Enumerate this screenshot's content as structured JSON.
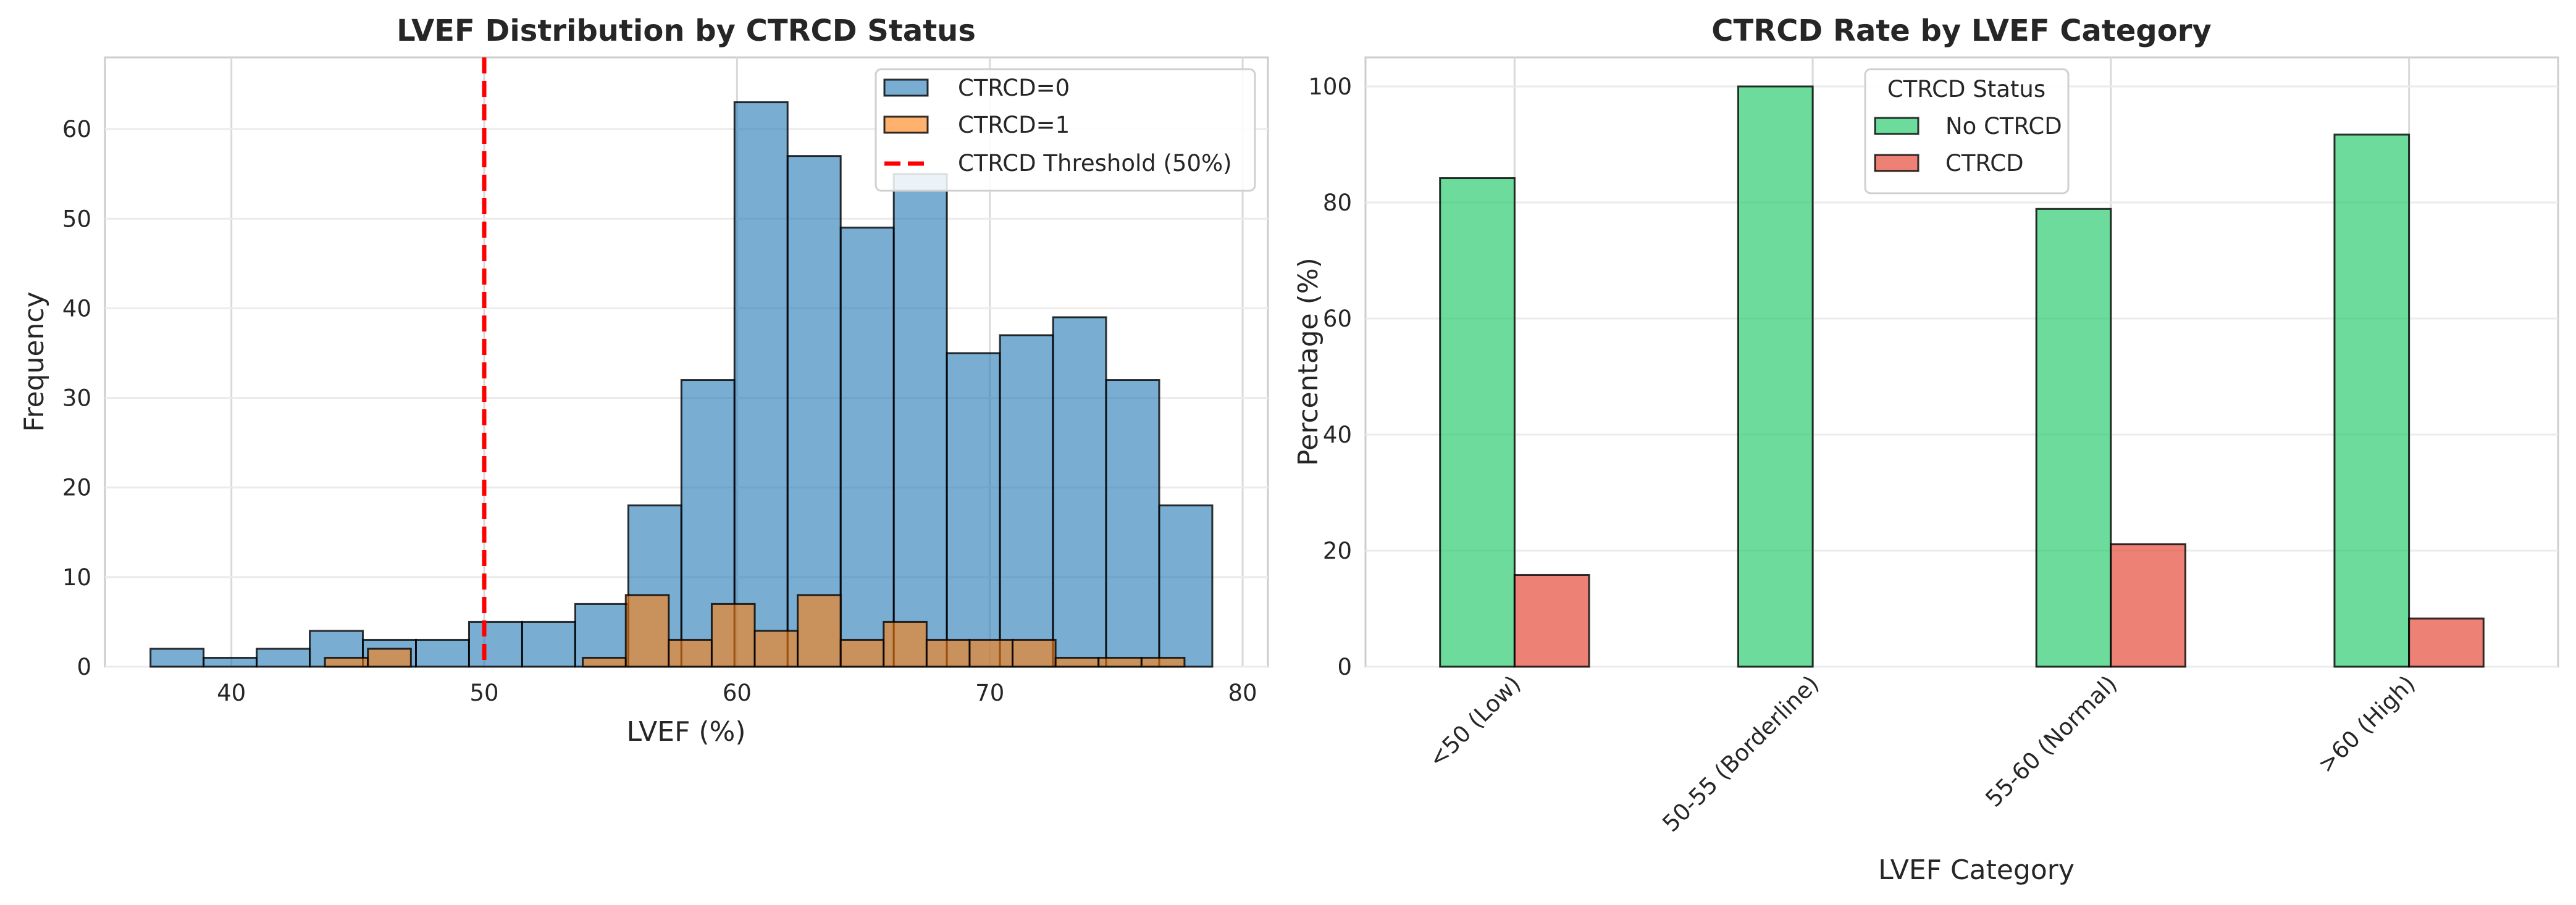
{
  "chart_data": [
    {
      "type": "histogram",
      "title": "LVEF Distribution by CTRCD Status",
      "xlabel": "LVEF (%)",
      "ylabel": "Frequency",
      "xlim": [
        35,
        81
      ],
      "ylim": [
        0,
        68
      ],
      "xticks": [
        40,
        50,
        60,
        70,
        80
      ],
      "yticks": [
        0,
        10,
        20,
        30,
        40,
        50,
        60
      ],
      "grid": true,
      "legend_position": "top-right",
      "series": [
        {
          "name": "CTRCD=0",
          "color": "#1f77b4",
          "bin_edges": [
            36.8,
            38.9,
            41.0,
            43.1,
            45.2,
            47.3,
            49.4,
            51.5,
            53.6,
            55.7,
            57.8,
            59.9,
            62.0,
            64.1,
            66.2,
            68.3,
            70.4,
            72.5,
            74.6,
            76.7,
            78.8
          ],
          "counts": [
            2,
            1,
            2,
            4,
            3,
            3,
            5,
            5,
            7,
            18,
            32,
            63,
            57,
            49,
            55,
            35,
            37,
            39,
            32,
            18
          ]
        },
        {
          "name": "CTRCD=1",
          "color": "#ff7f0e",
          "bin_edges": [
            43.7,
            45.4,
            47.1,
            48.8,
            50.5,
            52.2,
            53.9,
            55.6,
            57.3,
            59.0,
            60.7,
            62.4,
            64.1,
            65.8,
            67.5,
            69.2,
            70.9,
            72.6,
            74.3,
            76.0,
            77.7
          ],
          "counts": [
            1,
            2,
            0,
            0,
            0,
            0,
            1,
            8,
            3,
            7,
            4,
            8,
            3,
            5,
            3,
            3,
            3,
            1,
            1,
            1
          ]
        }
      ],
      "threshold_line": {
        "label": "CTRCD Threshold (50%)",
        "x": 50,
        "color": "#ff0000"
      }
    },
    {
      "type": "bar",
      "title": "CTRCD Rate by LVEF Category",
      "xlabel": "LVEF Category",
      "ylabel": "Percentage (%)",
      "categories": [
        "<50 (Low)",
        "50-55 (Borderline)",
        "55-60 (Normal)",
        ">60 (High)"
      ],
      "ylim": [
        0,
        105
      ],
      "yticks": [
        0,
        20,
        40,
        60,
        80,
        100
      ],
      "grid": true,
      "legend_title": "CTRCD Status",
      "legend_position": "top-center",
      "series": [
        {
          "name": "No CTRCD",
          "color": "#2ecc71",
          "values": [
            84.2,
            100.0,
            78.9,
            91.7
          ]
        },
        {
          "name": "CTRCD",
          "color": "#e74c3c",
          "values": [
            15.8,
            0.0,
            21.1,
            8.3
          ]
        }
      ]
    }
  ]
}
